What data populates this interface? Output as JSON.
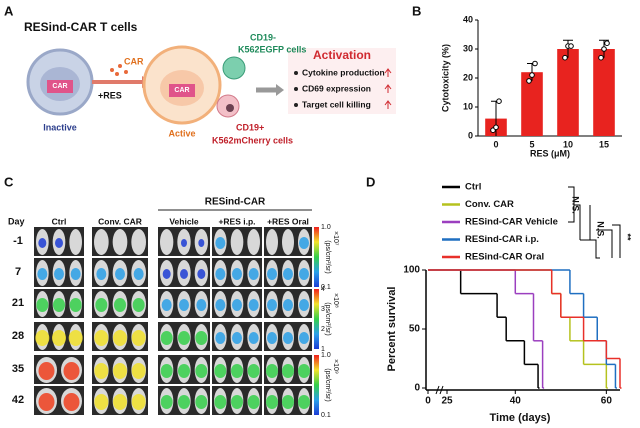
{
  "panel_a": {
    "label": "A",
    "title": "RESind-CAR T cells",
    "car": "CAR",
    "res": "+RES",
    "inactive": "Inactive",
    "active": "Active",
    "box_inactive": "CAR",
    "box_active": "CAR",
    "cd19neg": "CD19-",
    "k562egfp": "K562EGFP cells",
    "cd19pos": "CD19+",
    "k562mcherry": "K562mCherry cells",
    "activation": "Activation",
    "outcomes": [
      "Cytokine production",
      "CD69 expression",
      "Target cell killing"
    ]
  },
  "panel_c": {
    "label": "C",
    "day": "Day",
    "group": "RESind-CAR",
    "columns": [
      "Ctrl",
      "Conv. CAR",
      "Vehicle",
      "+RES i.p.",
      "+RES Oral"
    ],
    "rows": [
      "-1",
      "7",
      "21",
      "28",
      "35",
      "42"
    ],
    "colorbars": [
      {
        "ticks": [
          "1.0",
          "0.1"
        ],
        "scale": "×10⁷",
        "unit": "(ps/cm²/sr)"
      },
      {
        "ticks": [
          "4",
          "3",
          "2",
          "1"
        ],
        "scale": "×10⁸",
        "unit": "(ps/cm²/sr)"
      },
      {
        "ticks": [
          "1.0",
          "0.1"
        ],
        "scale": "×10⁹",
        "unit": "(ps/cm²/sr)"
      }
    ]
  },
  "chart_data": [
    {
      "type": "bar",
      "label": "B",
      "xlabel": "RES (μM)",
      "ylabel": "Cytotoxicity (%)",
      "categories": [
        "0",
        "5",
        "10",
        "15"
      ],
      "values": [
        6,
        22,
        30,
        30
      ],
      "errors": [
        6,
        3,
        3,
        3
      ],
      "points": [
        [
          2,
          3,
          12
        ],
        [
          19,
          21,
          25
        ],
        [
          27,
          31,
          31
        ],
        [
          27,
          30,
          32
        ]
      ],
      "color": "#e8231f",
      "ylim": [
        0,
        40
      ],
      "yticks": [
        0,
        10,
        20,
        30,
        40
      ]
    },
    {
      "type": "step",
      "label": "D",
      "xlabel": "Time (days)",
      "ylabel": "Percent survival",
      "x_axis_break": true,
      "xlim": [
        0,
        63
      ],
      "xticks": [
        0,
        25,
        40,
        60
      ],
      "ylim": [
        0,
        100
      ],
      "yticks": [
        0,
        50,
        100
      ],
      "series": [
        {
          "name": "Ctrl",
          "color": "#000000",
          "x": [
            0,
            28,
            36,
            38,
            42,
            45
          ],
          "values": [
            100,
            80,
            60,
            40,
            20,
            0
          ]
        },
        {
          "name": "Conv. CAR",
          "color": "#b5c21e",
          "x": [
            0,
            48,
            50,
            52,
            55,
            60
          ],
          "values": [
            100,
            80,
            60,
            40,
            20,
            0
          ]
        },
        {
          "name": "RESind-CAR Vehicle",
          "color": "#9b3fbf",
          "x": [
            0,
            40,
            44,
            46
          ],
          "values": [
            100,
            80,
            40,
            0
          ]
        },
        {
          "name": "RESind-CAR i.p.",
          "color": "#1f6fc1",
          "x": [
            0,
            52,
            55,
            58,
            60,
            62
          ],
          "values": [
            100,
            80,
            60,
            40,
            20,
            0
          ]
        },
        {
          "name": "RESind-CAR Oral",
          "color": "#e8302a",
          "x": [
            0,
            48,
            50,
            55,
            60,
            63
          ],
          "values": [
            100,
            80,
            60,
            40,
            25,
            0
          ]
        }
      ],
      "annotations": [
        "N.S.",
        "N.S.",
        "**"
      ]
    }
  ]
}
